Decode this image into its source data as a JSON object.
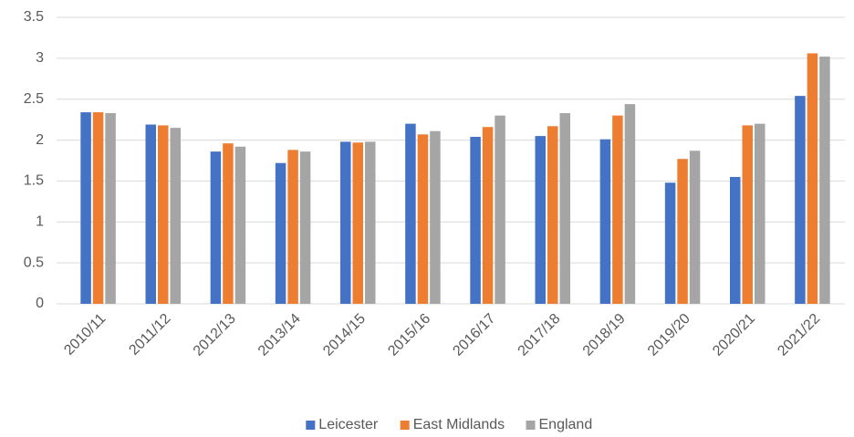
{
  "chart_data": {
    "type": "bar",
    "categories": [
      "2010/11",
      "2011/12",
      "2012/13",
      "2013/14",
      "2014/15",
      "2015/16",
      "2016/17",
      "2017/18",
      "2018/19",
      "2019/20",
      "2020/21",
      "2021/22"
    ],
    "series": [
      {
        "name": "Leicester",
        "color": "#4472c4",
        "values": [
          2.34,
          2.19,
          1.86,
          1.72,
          1.98,
          2.2,
          2.04,
          2.05,
          2.01,
          1.48,
          1.55,
          2.54
        ]
      },
      {
        "name": "East Midlands",
        "color": "#ed7d31",
        "values": [
          2.34,
          2.18,
          1.96,
          1.88,
          1.97,
          2.07,
          2.16,
          2.17,
          2.3,
          1.77,
          2.18,
          3.06
        ]
      },
      {
        "name": "England",
        "color": "#a5a5a5",
        "values": [
          2.33,
          2.15,
          1.92,
          1.86,
          1.98,
          2.11,
          2.3,
          2.33,
          2.44,
          1.87,
          2.2,
          3.02
        ]
      }
    ],
    "ylim": [
      0,
      3.5
    ],
    "yticks": [
      0,
      0.5,
      1,
      1.5,
      2,
      2.5,
      3,
      3.5
    ],
    "grid": true,
    "legend": "bottom"
  }
}
